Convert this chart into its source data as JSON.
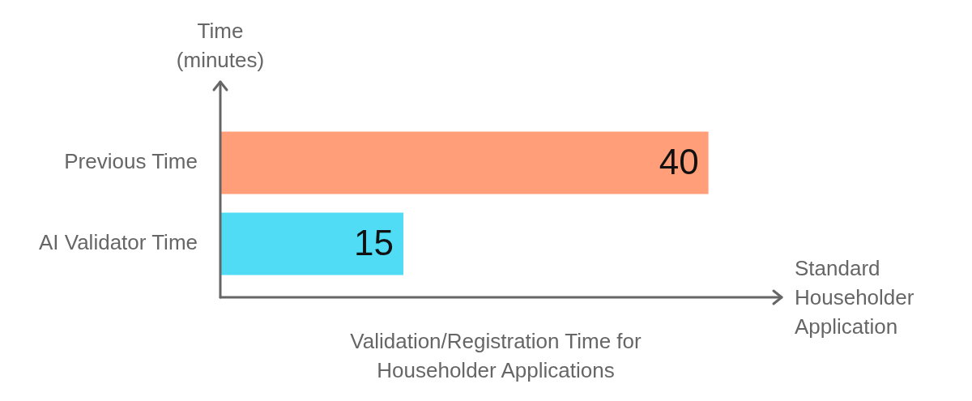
{
  "chart_data": {
    "type": "bar",
    "orientation": "horizontal",
    "title": "Validation/Registration Time for Householder Applications",
    "xlabel": "Standard Householder Application",
    "ylabel": "Time (minutes)",
    "categories": [
      "Previous Time",
      "AI Validator Time"
    ],
    "values": [
      40,
      15
    ],
    "colors": [
      "#ff9e78",
      "#50dcf5"
    ],
    "data_labels": true,
    "grid": false,
    "legend": false
  }
}
